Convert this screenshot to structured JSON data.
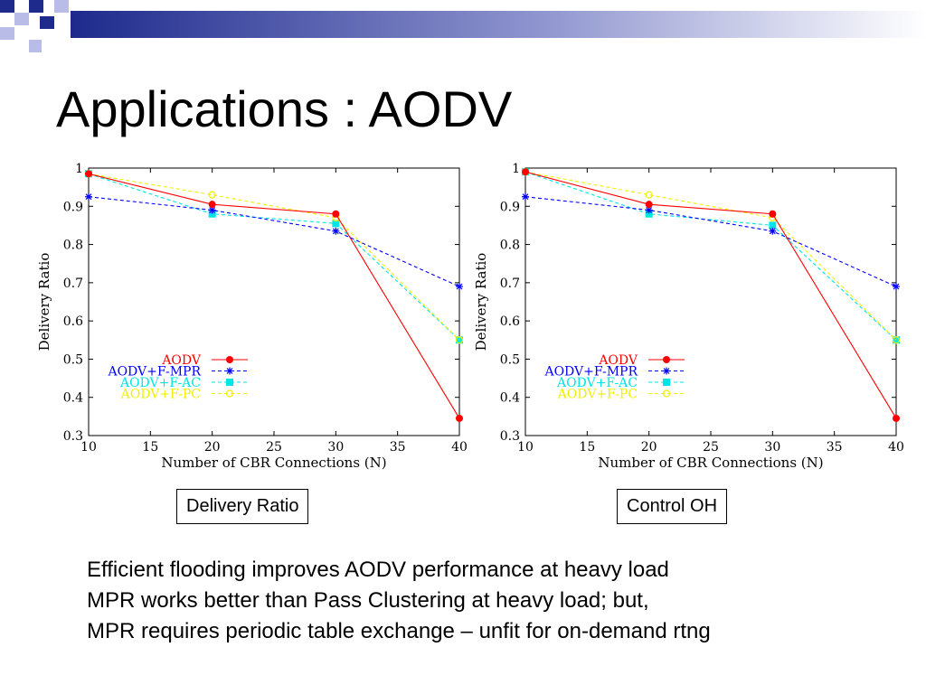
{
  "slide": {
    "title": "Applications : AODV",
    "captions": [
      "Delivery Ratio",
      "Control OH"
    ],
    "notes": [
      "Efficient flooding improves AODV performance at heavy load",
      "MPR works better than Pass Clustering at heavy load; but,",
      "MPR requires periodic table exchange – unfit for on-demand rtng"
    ]
  },
  "colors": {
    "banner_dark": "#1e2a8c",
    "banner_light": "#b8bce6"
  },
  "chart_data": [
    {
      "type": "line",
      "title": "",
      "xlabel": "Number of CBR Connections (N)",
      "ylabel": "Delivery Ratio",
      "x": [
        10,
        20,
        30,
        40
      ],
      "xticks": [
        "10",
        "15",
        "20",
        "25",
        "30",
        "35",
        "40"
      ],
      "yticks": [
        "0.3",
        "0.4",
        "0.5",
        "0.6",
        "0.7",
        "0.8",
        "0.9",
        "1"
      ],
      "xlim": [
        10,
        40
      ],
      "ylim": [
        0.3,
        1.0
      ],
      "grid": false,
      "legend_position": "bottom-left",
      "series": [
        {
          "name": "AODV",
          "values": [
            0.985,
            0.905,
            0.88,
            0.345
          ],
          "color": "#ff0000",
          "dash": "solid",
          "marker": "filled-circle"
        },
        {
          "name": "AODV+F-MPR",
          "values": [
            0.925,
            0.89,
            0.835,
            0.69
          ],
          "color": "#0000ff",
          "dash": "dashed",
          "marker": "star"
        },
        {
          "name": "AODV+F-AC",
          "values": [
            0.985,
            0.88,
            0.855,
            0.55
          ],
          "color": "#00e5e5",
          "dash": "dashed",
          "marker": "filled-square"
        },
        {
          "name": "AODV+F-PC",
          "values": [
            0.985,
            0.93,
            0.87,
            0.55
          ],
          "color": "#f0f000",
          "dash": "dashed",
          "marker": "open-circle"
        }
      ]
    },
    {
      "type": "line",
      "title": "",
      "xlabel": "Number of CBR Connections (N)",
      "ylabel": "Delivery Ratio",
      "x": [
        10,
        20,
        30,
        40
      ],
      "xticks": [
        "10",
        "15",
        "20",
        "25",
        "30",
        "35",
        "40"
      ],
      "yticks": [
        "0.3",
        "0.4",
        "0.5",
        "0.6",
        "0.7",
        "0.8",
        "0.9",
        "1"
      ],
      "xlim": [
        10,
        40
      ],
      "ylim": [
        0.3,
        1.0
      ],
      "grid": false,
      "legend_position": "bottom-left",
      "series": [
        {
          "name": "AODV",
          "values": [
            0.99,
            0.905,
            0.88,
            0.345
          ],
          "color": "#ff0000",
          "dash": "solid",
          "marker": "filled-circle"
        },
        {
          "name": "AODV+F-MPR",
          "values": [
            0.925,
            0.89,
            0.835,
            0.69
          ],
          "color": "#0000ff",
          "dash": "dashed",
          "marker": "star"
        },
        {
          "name": "AODV+F-AC",
          "values": [
            0.99,
            0.88,
            0.85,
            0.55
          ],
          "color": "#00e5e5",
          "dash": "dashed",
          "marker": "filled-square"
        },
        {
          "name": "AODV+F-PC",
          "values": [
            0.99,
            0.93,
            0.87,
            0.55
          ],
          "color": "#f0f000",
          "dash": "dashed",
          "marker": "open-circle"
        }
      ]
    }
  ]
}
